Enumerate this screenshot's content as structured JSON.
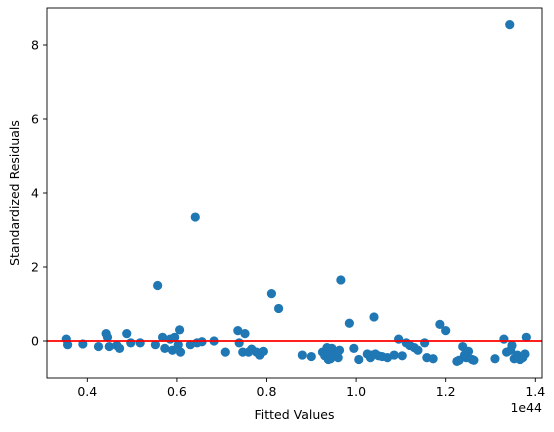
{
  "chart_data": {
    "type": "scatter",
    "xlabel": "Fitted Values",
    "ylabel": "Standardized Residuals",
    "x_offset_label": "1e44",
    "xlim": [
      0.31,
      1.415
    ],
    "ylim": [
      -1.0,
      9.0
    ],
    "x_ticks": [
      {
        "value": 0.4,
        "label": "0.4"
      },
      {
        "value": 0.6,
        "label": "0.6"
      },
      {
        "value": 0.8,
        "label": "0.8"
      },
      {
        "value": 1.0,
        "label": "1.0"
      },
      {
        "value": 1.2,
        "label": "1.2"
      },
      {
        "value": 1.4,
        "label": "1.4"
      }
    ],
    "y_ticks": [
      {
        "value": 0,
        "label": "0"
      },
      {
        "value": 2,
        "label": "2"
      },
      {
        "value": 4,
        "label": "4"
      },
      {
        "value": 6,
        "label": "6"
      },
      {
        "value": 8,
        "label": "8"
      }
    ],
    "reference_line": {
      "y": 0,
      "color": "#ff0000"
    },
    "marker_color": "#1f77b4",
    "grid": false,
    "series": [
      {
        "x": [
          0.353,
          0.356,
          0.39,
          0.425,
          0.442,
          0.445,
          0.449,
          0.466,
          0.472,
          0.488,
          0.497,
          0.518,
          0.552,
          0.557,
          0.568,
          0.573,
          0.585,
          0.59,
          0.595,
          0.603,
          0.606,
          0.608,
          0.63,
          0.641,
          0.645,
          0.656,
          0.683,
          0.708,
          0.736,
          0.739,
          0.747,
          0.752,
          0.76,
          0.767,
          0.778,
          0.785,
          0.793,
          0.811,
          0.827,
          0.88,
          0.9,
          0.925,
          0.93,
          0.935,
          0.938,
          0.94,
          0.943,
          0.946,
          0.949,
          0.953,
          0.956,
          0.96,
          0.963,
          0.966,
          0.985,
          0.995,
          1.006,
          1.025,
          1.032,
          1.035,
          1.04,
          1.043,
          1.05,
          1.058,
          1.07,
          1.085,
          1.095,
          1.103,
          1.112,
          1.12,
          1.13,
          1.138,
          1.153,
          1.158,
          1.172,
          1.187,
          1.2,
          1.225,
          1.23,
          1.238,
          1.242,
          1.246,
          1.251,
          1.259,
          1.263,
          1.31,
          1.33,
          1.336,
          1.343,
          1.345,
          1.348,
          1.353,
          1.36,
          1.366,
          1.372,
          1.377,
          1.38
        ],
        "y": [
          0.05,
          -0.1,
          -0.08,
          -0.15,
          0.2,
          0.1,
          -0.15,
          -0.12,
          -0.2,
          0.2,
          -0.05,
          -0.05,
          -0.1,
          1.5,
          0.1,
          -0.2,
          0.05,
          -0.25,
          0.1,
          -0.1,
          0.3,
          -0.3,
          -0.1,
          3.35,
          -0.05,
          -0.02,
          0.0,
          -0.3,
          0.28,
          -0.05,
          -0.3,
          0.2,
          -0.3,
          -0.22,
          -0.3,
          -0.38,
          -0.28,
          1.28,
          0.88,
          -0.38,
          -0.42,
          -0.3,
          -0.4,
          -0.18,
          -0.5,
          -0.25,
          -0.48,
          -0.2,
          -0.38,
          -0.32,
          -0.3,
          -0.45,
          -0.25,
          1.65,
          0.48,
          -0.2,
          -0.5,
          -0.35,
          -0.45,
          -0.38,
          0.65,
          -0.35,
          -0.4,
          -0.42,
          -0.45,
          -0.38,
          0.05,
          -0.4,
          -0.05,
          -0.12,
          -0.18,
          -0.25,
          -0.05,
          -0.45,
          -0.48,
          0.45,
          0.28,
          -0.55,
          -0.52,
          -0.15,
          -0.38,
          -0.45,
          -0.28,
          -0.5,
          -0.52,
          -0.48,
          0.05,
          -0.3,
          8.55,
          -0.25,
          -0.12,
          -0.48,
          -0.38,
          -0.5,
          -0.45,
          -0.35,
          0.1
        ]
      }
    ]
  }
}
